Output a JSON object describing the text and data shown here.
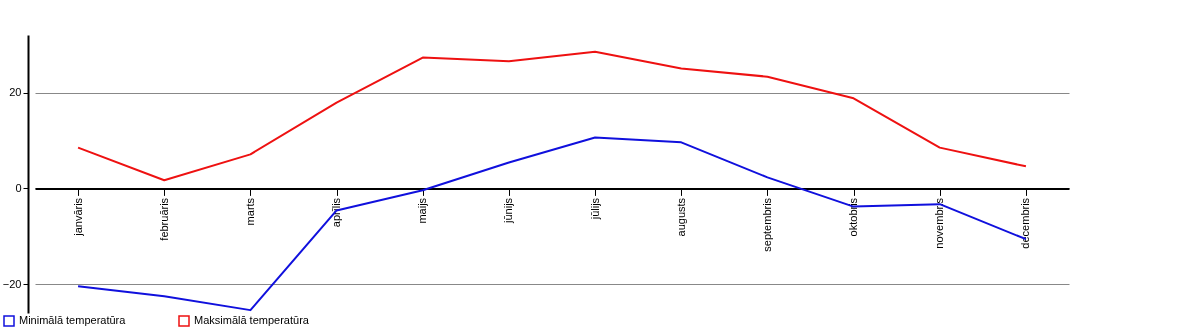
{
  "chart_data": {
    "type": "line",
    "categories": [
      "janvāris",
      "februāris",
      "marts",
      "aprīlis",
      "maijs",
      "jūnijs",
      "jūlijs",
      "augusts",
      "septembris",
      "oktobris",
      "novembris",
      "decembris"
    ],
    "series": [
      {
        "name": "Minimālā temperatūra",
        "color": "#1010dd",
        "values": [
          -20.4,
          -22.5,
          -25.4,
          -4.6,
          -0.4,
          5.4,
          10.6,
          9.6,
          2.3,
          -3.8,
          -3.3,
          -10.6
        ]
      },
      {
        "name": "Maksimālā temperatūra",
        "color": "#ee1111",
        "values": [
          8.5,
          1.7,
          7.1,
          17.9,
          27.3,
          26.5,
          28.5,
          25,
          23.3,
          18.8,
          8.5,
          4.6
        ]
      }
    ],
    "ylim": [
      -26,
      32
    ],
    "yticks": [
      -20,
      0,
      20
    ],
    "grid": "y",
    "legend": "bottom left"
  }
}
